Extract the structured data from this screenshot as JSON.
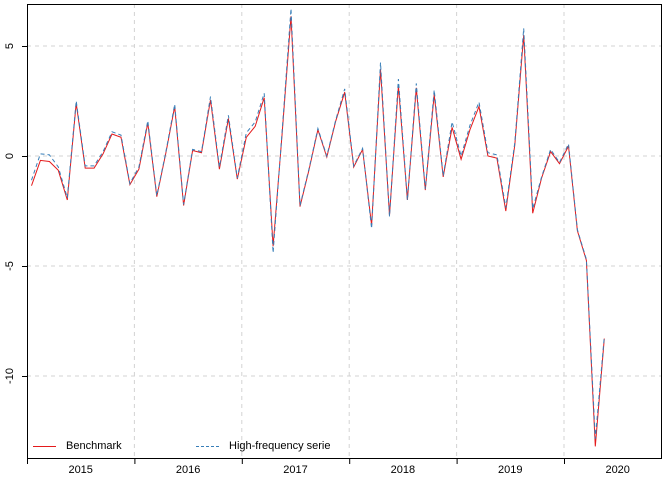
{
  "figure": {
    "background": "#ffffff",
    "axis_color": "#000000",
    "grid_color": "#d3d3d3"
  },
  "chart_data": {
    "type": "line",
    "title": "",
    "xlabel": "",
    "ylabel": "",
    "frequency": "monthly",
    "x_start": "2015-01",
    "x_end": "2020-05",
    "xlim_years": [
      2015,
      2020.92
    ],
    "ylim": [
      -13.7,
      6.9
    ],
    "grid": {
      "on": true,
      "h_values": [
        5,
        0,
        -5,
        -10
      ],
      "v_years": [
        2016,
        2017,
        2018,
        2019,
        2020
      ],
      "dash": "4 4"
    },
    "x_tick_years": [
      2015,
      2016,
      2017,
      2018,
      2019,
      2020
    ],
    "x_tick_labels": [
      "2015",
      "2016",
      "2017",
      "2018",
      "2019",
      "2020"
    ],
    "y_tick_values": [
      5,
      0,
      -5,
      -10
    ],
    "y_tick_labels": [
      "5",
      "0",
      "-5",
      "-10"
    ],
    "legend_position": "bottom-left-inside",
    "series": [
      {
        "name": "Benchmark",
        "color": "#e41a1c",
        "line_style": "solid",
        "values": [
          -1.35,
          -0.2,
          -0.25,
          -0.65,
          -2.0,
          2.4,
          -0.55,
          -0.55,
          0.1,
          1.0,
          0.85,
          -1.3,
          -0.6,
          1.5,
          -1.85,
          0.1,
          2.25,
          -2.25,
          0.25,
          0.15,
          2.55,
          -0.6,
          1.7,
          -1.05,
          0.85,
          1.35,
          2.65,
          -4.1,
          1.0,
          6.35,
          -2.3,
          -0.65,
          1.2,
          -0.05,
          1.6,
          2.9,
          -0.5,
          0.3,
          -3.15,
          3.95,
          -2.7,
          3.2,
          -2.0,
          3.1,
          -1.55,
          2.8,
          -0.95,
          1.3,
          -0.15,
          1.2,
          2.25,
          0.0,
          -0.1,
          -2.5,
          0.5,
          5.5,
          -2.6,
          -1.0,
          0.2,
          -0.35,
          0.45,
          -3.4,
          -4.75,
          -13.2,
          -8.3
        ]
      },
      {
        "name": "High-frequency serie",
        "color": "#377eb8",
        "line_style": "dashed",
        "values": [
          -1.1,
          0.1,
          0.05,
          -0.5,
          -1.9,
          2.5,
          -0.45,
          -0.45,
          0.2,
          1.1,
          0.95,
          -1.25,
          -0.5,
          1.6,
          -1.8,
          0.15,
          2.35,
          -2.2,
          0.3,
          0.2,
          2.7,
          -0.5,
          1.85,
          -1.0,
          1.05,
          1.55,
          2.85,
          -4.4,
          1.1,
          6.7,
          -2.25,
          -0.6,
          1.25,
          0.0,
          1.65,
          3.05,
          -0.45,
          0.35,
          -3.3,
          4.25,
          -2.75,
          3.5,
          -2.0,
          3.3,
          -1.5,
          3.0,
          -0.9,
          1.55,
          0.0,
          1.4,
          2.45,
          0.15,
          0.05,
          -2.35,
          0.6,
          5.8,
          -2.4,
          -0.95,
          0.3,
          -0.3,
          0.55,
          -3.35,
          -4.7,
          -12.85,
          -8.2
        ]
      }
    ]
  }
}
